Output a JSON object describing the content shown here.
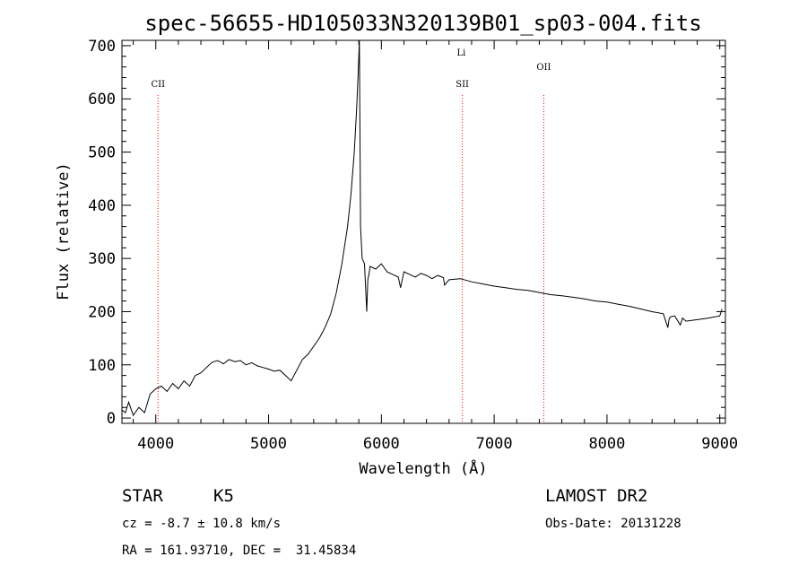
{
  "chart_data": {
    "type": "line",
    "title": "spec-56655-HD105033N320139B01_sp03-004.fits",
    "xlabel": "Wavelength (Å)",
    "ylabel": "Flux (relative)",
    "xlim": [
      3700,
      9050
    ],
    "ylim": [
      -10,
      710
    ],
    "xticks": [
      4000,
      5000,
      6000,
      7000,
      8000,
      9000
    ],
    "yticks": [
      0,
      100,
      200,
      300,
      400,
      500,
      600,
      700
    ],
    "grid": false,
    "line_color": "#000000",
    "marker_color": "#ff0000",
    "series": [
      {
        "x": [
          3700,
          3730,
          3760,
          3800,
          3850,
          3900,
          3950,
          4000,
          4050,
          4100,
          4150,
          4200,
          4250,
          4300,
          4350,
          4400,
          4450,
          4500,
          4550,
          4600,
          4650,
          4700,
          4750,
          4800,
          4850,
          4900,
          4950,
          5000,
          5050,
          5100,
          5150,
          5200,
          5250,
          5300,
          5350,
          5400,
          5450,
          5500,
          5550,
          5600,
          5650,
          5700,
          5730,
          5760,
          5780,
          5795,
          5805,
          5815,
          5830,
          5850,
          5870,
          5880,
          5890,
          5900,
          5950,
          6000,
          6050,
          6100,
          6150,
          6170,
          6200,
          6250,
          6300,
          6350,
          6400,
          6450,
          6500,
          6550,
          6560,
          6600,
          6700,
          6800,
          6900,
          7000,
          7100,
          7200,
          7300,
          7400,
          7500,
          7600,
          7700,
          7800,
          7900,
          8000,
          8100,
          8200,
          8300,
          8400,
          8500,
          8540,
          8550,
          8560,
          8600,
          8650,
          8670,
          8700,
          8800,
          8900,
          9000,
          9020
        ],
        "y": [
          15,
          10,
          30,
          5,
          20,
          10,
          45,
          55,
          60,
          50,
          65,
          55,
          70,
          60,
          80,
          85,
          95,
          105,
          108,
          102,
          110,
          106,
          108,
          100,
          104,
          98,
          95,
          92,
          88,
          90,
          80,
          70,
          90,
          110,
          120,
          135,
          150,
          170,
          195,
          235,
          290,
          360,
          420,
          500,
          580,
          650,
          720,
          360,
          300,
          290,
          200,
          260,
          270,
          285,
          280,
          290,
          275,
          270,
          265,
          245,
          275,
          270,
          265,
          272,
          268,
          262,
          268,
          264,
          250,
          260,
          262,
          256,
          252,
          248,
          245,
          242,
          240,
          236,
          232,
          230,
          227,
          224,
          220,
          218,
          214,
          210,
          205,
          200,
          196,
          170,
          185,
          190,
          192,
          175,
          188,
          182,
          185,
          188,
          192,
          205
        ]
      }
    ],
    "markers": [
      {
        "label": "CII",
        "x": 4020
      },
      {
        "label": "Li",
        "x": 6708
      },
      {
        "label": "SII",
        "x": 6718
      },
      {
        "label": "OII",
        "x": 7440
      }
    ]
  },
  "info": {
    "class": "STAR",
    "subclass": "K5",
    "survey": "LAMOST DR2",
    "cz": "cz = -8.7 ± 10.8 km/s",
    "obs_date": "Obs-Date: 20131228",
    "radec": "RA = 161.93710, DEC =  31.45834"
  }
}
